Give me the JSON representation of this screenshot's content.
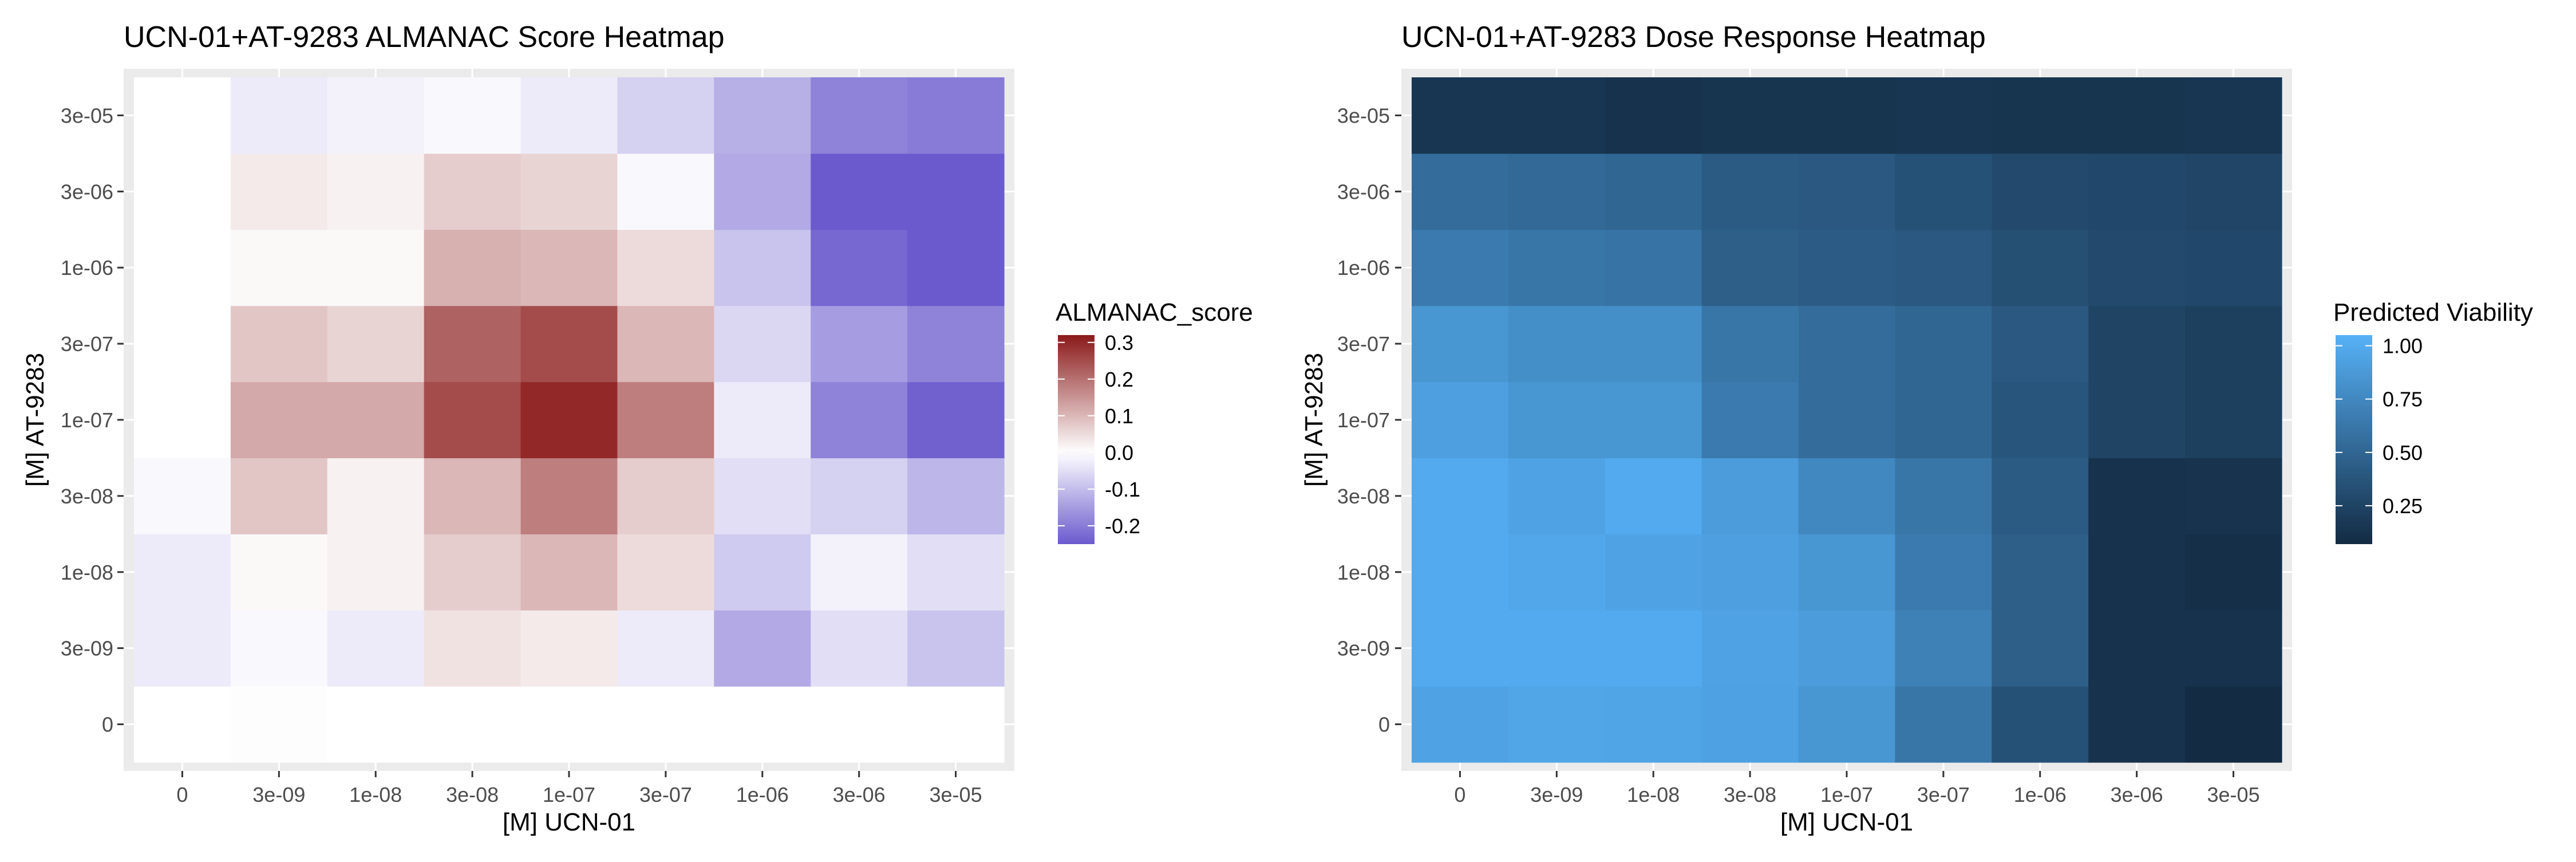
{
  "chart_data": [
    {
      "type": "heatmap",
      "title": "UCN-01+AT-9283 ALMANAC Score Heatmap",
      "xlabel": "[M] UCN-01",
      "ylabel": "[M] AT-9283",
      "x_categories": [
        "0",
        "3e-09",
        "1e-08",
        "3e-08",
        "1e-07",
        "3e-07",
        "1e-06",
        "3e-06",
        "3e-05"
      ],
      "y_categories": [
        "0",
        "3e-09",
        "1e-08",
        "3e-08",
        "1e-07",
        "3e-07",
        "1e-06",
        "3e-06",
        "3e-05"
      ],
      "values": [
        [
          0.0,
          0.003,
          0.0,
          0.0,
          0.0,
          0.0,
          0.0,
          0.0,
          0.0
        ],
        [
          -0.03,
          -0.01,
          -0.03,
          0.04,
          0.03,
          -0.03,
          -0.13,
          -0.05,
          -0.09
        ],
        [
          -0.03,
          0.01,
          0.02,
          0.07,
          0.1,
          0.05,
          -0.08,
          -0.02,
          -0.05
        ],
        [
          -0.01,
          0.08,
          0.02,
          0.1,
          0.18,
          0.07,
          -0.05,
          -0.07,
          -0.11
        ],
        [
          0.0,
          0.12,
          0.12,
          0.25,
          0.3,
          0.18,
          -0.03,
          -0.19,
          -0.24
        ],
        [
          0.0,
          0.08,
          0.06,
          0.22,
          0.25,
          0.1,
          -0.06,
          -0.15,
          -0.19
        ],
        [
          0.0,
          0.01,
          0.01,
          0.11,
          0.1,
          0.05,
          -0.09,
          -0.23,
          -0.27
        ],
        [
          0.0,
          0.03,
          0.02,
          0.07,
          0.06,
          -0.01,
          -0.13,
          -0.26,
          -0.3
        ],
        [
          0.0,
          -0.03,
          -0.02,
          -0.01,
          -0.03,
          -0.07,
          -0.12,
          -0.19,
          -0.2
        ]
      ],
      "legend": {
        "title": "ALMANAC_score",
        "ticks": [
          "0.3",
          "0.2",
          "0.1",
          "0.0",
          "-0.1",
          "-0.2"
        ],
        "tick_values": [
          0.3,
          0.2,
          0.1,
          0.0,
          -0.1,
          -0.2
        ],
        "position": "right",
        "low_color": "#6a5acd",
        "mid_color": "#ffffff",
        "high_color": "#8b1a1a",
        "range": [
          -0.25,
          0.32
        ]
      },
      "grid": true
    },
    {
      "type": "heatmap",
      "title": "UCN-01+AT-9283 Dose Response Heatmap",
      "xlabel": "[M] UCN-01",
      "ylabel": "[M] AT-9283",
      "x_categories": [
        "0",
        "3e-09",
        "1e-08",
        "3e-08",
        "1e-07",
        "3e-07",
        "1e-06",
        "3e-06",
        "3e-05"
      ],
      "y_categories": [
        "0",
        "3e-09",
        "1e-08",
        "3e-08",
        "1e-07",
        "3e-07",
        "1e-06",
        "3e-06",
        "3e-05"
      ],
      "values": [
        [
          0.95,
          0.97,
          0.96,
          0.94,
          0.85,
          0.62,
          0.35,
          0.12,
          0.07
        ],
        [
          1.0,
          1.0,
          1.0,
          0.95,
          0.9,
          0.7,
          0.45,
          0.12,
          0.12
        ],
        [
          1.0,
          0.98,
          0.95,
          0.92,
          0.85,
          0.65,
          0.45,
          0.12,
          0.1
        ],
        [
          1.0,
          0.95,
          1.0,
          0.9,
          0.75,
          0.62,
          0.42,
          0.12,
          0.13
        ],
        [
          0.92,
          0.85,
          0.85,
          0.65,
          0.55,
          0.5,
          0.38,
          0.25,
          0.22
        ],
        [
          0.85,
          0.8,
          0.8,
          0.62,
          0.55,
          0.5,
          0.4,
          0.25,
          0.22
        ],
        [
          0.65,
          0.62,
          0.6,
          0.45,
          0.43,
          0.4,
          0.33,
          0.3,
          0.28
        ],
        [
          0.55,
          0.52,
          0.5,
          0.42,
          0.4,
          0.35,
          0.3,
          0.28,
          0.26
        ],
        [
          0.15,
          0.15,
          0.12,
          0.14,
          0.14,
          0.15,
          0.14,
          0.14,
          0.15
        ]
      ],
      "legend": {
        "title": "Predicted Viability",
        "ticks": [
          "1.00",
          "0.75",
          "0.50",
          "0.25"
        ],
        "tick_values": [
          1.0,
          0.75,
          0.5,
          0.25
        ],
        "position": "right",
        "low_color": "#132b43",
        "high_color": "#56b1f7",
        "range": [
          0.07,
          1.05
        ]
      },
      "grid": true
    }
  ]
}
